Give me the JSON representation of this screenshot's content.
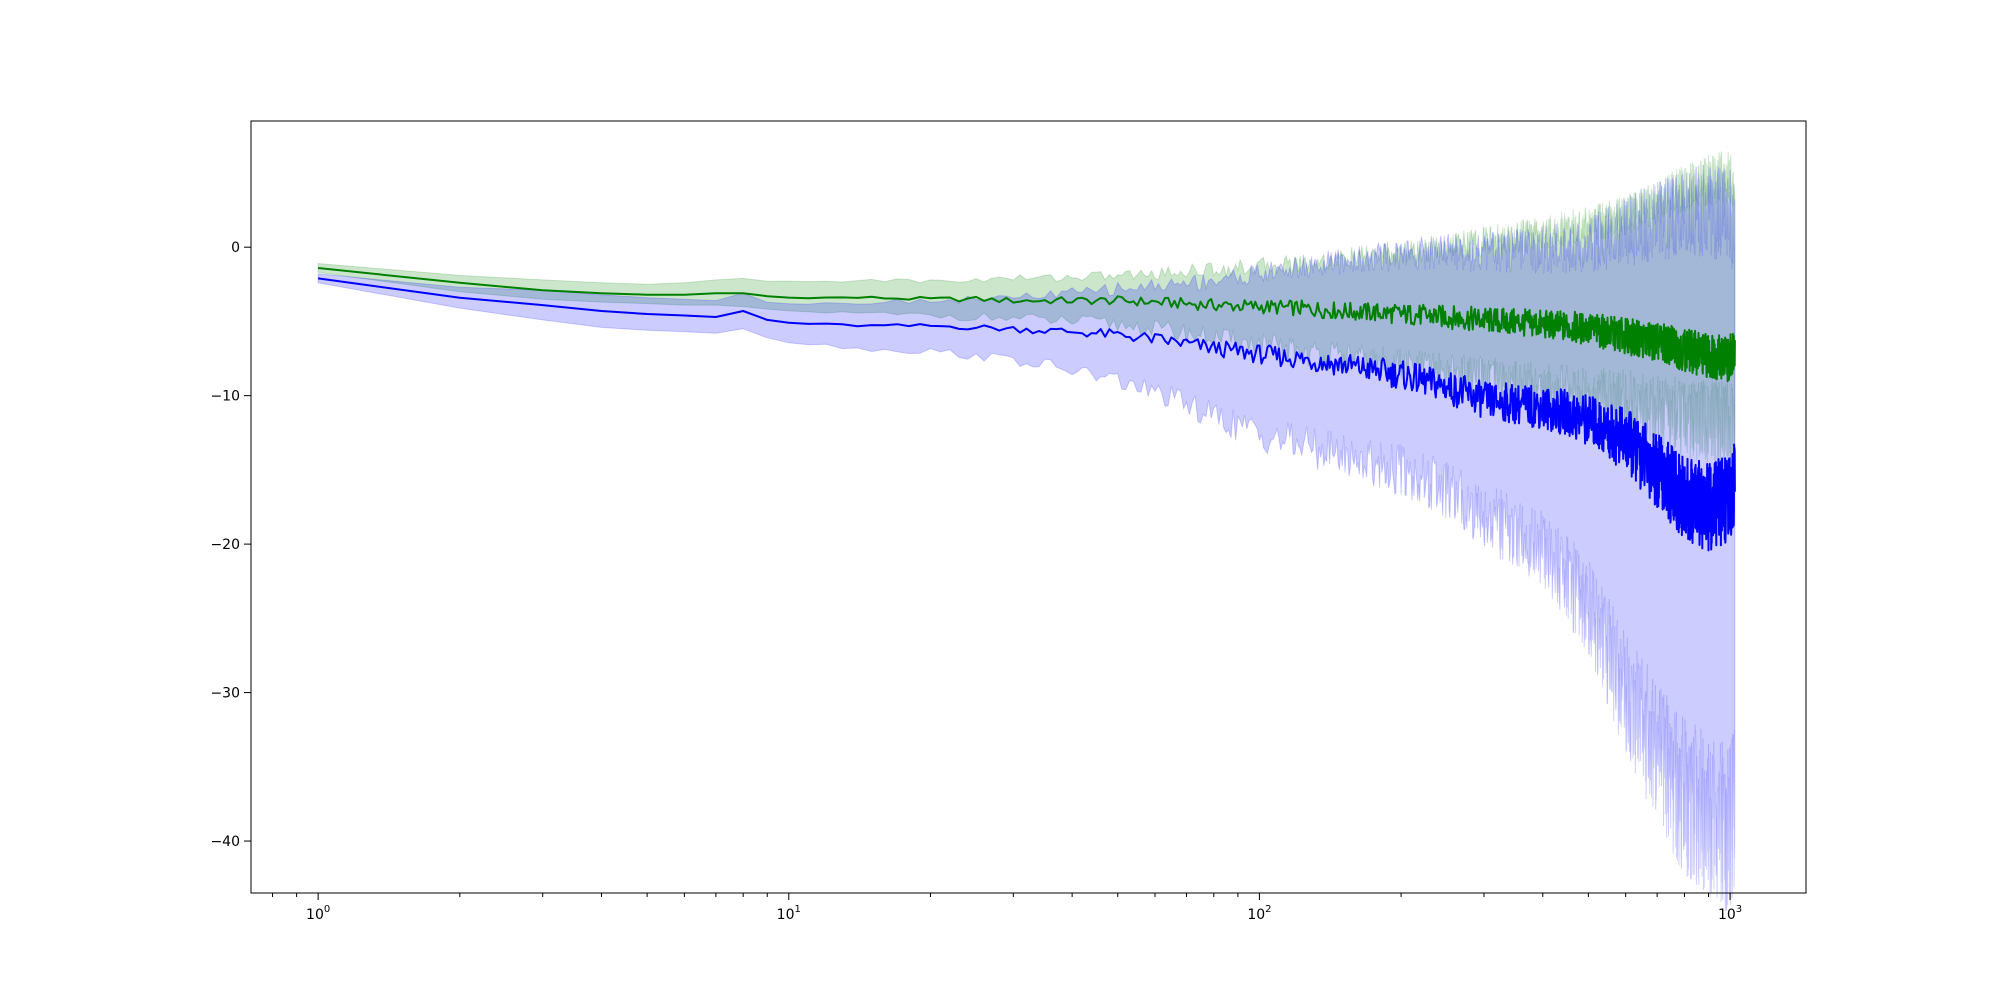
{
  "chart_data": {
    "type": "line",
    "title": "",
    "xlabel": "",
    "ylabel": "",
    "xscale": "log",
    "xlim": [
      0.72,
      1450
    ],
    "ylim": [
      -43.5,
      8.5
    ],
    "grid": false,
    "legend": "none",
    "x_ticks": [
      {
        "value": 1,
        "base": "10",
        "exp": "0"
      },
      {
        "value": 10,
        "base": "10",
        "exp": "1"
      },
      {
        "value": 100,
        "base": "10",
        "exp": "2"
      },
      {
        "value": 1000,
        "base": "10",
        "exp": "3"
      }
    ],
    "y_ticks": [
      {
        "value": 0,
        "label": "0"
      },
      {
        "value": -10,
        "label": "−10"
      },
      {
        "value": -20,
        "label": "−20"
      },
      {
        "value": -30,
        "label": "−30"
      },
      {
        "value": -40,
        "label": "−40"
      }
    ],
    "x": [
      1,
      1.5,
      2,
      3,
      4,
      5,
      6,
      7,
      8,
      9,
      10,
      12,
      15,
      20,
      25,
      30,
      40,
      50,
      60,
      70,
      80,
      100,
      120,
      150,
      200,
      250,
      300,
      400,
      500,
      600,
      700,
      800,
      900,
      1000,
      1024
    ],
    "series": [
      {
        "color": "#008000",
        "band_color": "#008000",
        "mean": [
          -1.4,
          -2.0,
          -2.4,
          -2.9,
          -3.1,
          -3.2,
          -3.2,
          -3.1,
          -3.1,
          -3.3,
          -3.4,
          -3.4,
          -3.4,
          -3.5,
          -3.5,
          -3.6,
          -3.6,
          -3.6,
          -3.7,
          -3.8,
          -3.9,
          -4.0,
          -4.1,
          -4.3,
          -4.5,
          -4.7,
          -4.9,
          -5.2,
          -5.5,
          -6.0,
          -6.4,
          -6.9,
          -7.3,
          -7.5,
          -6.5
        ],
        "lower": [
          -1.7,
          -2.4,
          -3.0,
          -3.5,
          -3.7,
          -3.8,
          -3.9,
          -3.9,
          -4.0,
          -4.2,
          -4.3,
          -4.4,
          -4.5,
          -4.6,
          -4.7,
          -4.8,
          -5.0,
          -5.2,
          -5.5,
          -5.8,
          -6.1,
          -6.6,
          -7.0,
          -7.5,
          -8.0,
          -8.5,
          -9.0,
          -9.5,
          -10.0,
          -10.5,
          -11.0,
          -11.5,
          -11.8,
          -12.0,
          -11.0
        ],
        "upper": [
          -1.1,
          -1.6,
          -1.9,
          -2.2,
          -2.4,
          -2.5,
          -2.4,
          -2.2,
          -2.1,
          -2.3,
          -2.3,
          -2.3,
          -2.2,
          -2.3,
          -2.2,
          -2.1,
          -2.0,
          -1.9,
          -1.8,
          -1.6,
          -1.5,
          -1.3,
          -1.1,
          -0.8,
          -0.4,
          0.0,
          0.4,
          1.0,
          1.5,
          2.2,
          3.0,
          4.0,
          4.5,
          4.8,
          3.5
        ]
      },
      {
        "color": "#0000ff",
        "band_color": "#0000ff",
        "mean": [
          -2.1,
          -2.9,
          -3.4,
          -3.9,
          -4.3,
          -4.5,
          -4.6,
          -4.7,
          -4.3,
          -4.9,
          -5.1,
          -5.2,
          -5.3,
          -5.3,
          -5.4,
          -5.5,
          -5.7,
          -5.9,
          -6.2,
          -6.5,
          -6.8,
          -7.2,
          -7.5,
          -7.9,
          -8.6,
          -9.4,
          -10.3,
          -10.8,
          -11.6,
          -13.0,
          -15.0,
          -17.0,
          -17.5,
          -17.0,
          -16.0
        ],
        "lower": [
          -2.4,
          -3.4,
          -4.1,
          -4.9,
          -5.4,
          -5.6,
          -5.7,
          -5.8,
          -5.5,
          -6.1,
          -6.4,
          -6.6,
          -6.9,
          -7.0,
          -7.3,
          -7.6,
          -8.3,
          -9.0,
          -9.8,
          -10.6,
          -11.4,
          -12.6,
          -13.2,
          -14.0,
          -15.0,
          -16.5,
          -18.0,
          -20.5,
          -24.0,
          -30.0,
          -34.0,
          -37.0,
          -38.5,
          -39.0,
          -38.0
        ],
        "upper": [
          -1.8,
          -2.4,
          -2.7,
          -2.9,
          -3.2,
          -3.4,
          -3.5,
          -3.6,
          -3.1,
          -3.7,
          -3.8,
          -3.8,
          -3.7,
          -3.6,
          -3.5,
          -3.4,
          -3.1,
          -2.8,
          -2.6,
          -2.4,
          -2.2,
          -1.8,
          -1.4,
          -1.0,
          -0.5,
          -0.2,
          -0.4,
          -0.2,
          0.2,
          1.0,
          1.8,
          2.3,
          2.5,
          2.0,
          1.0
        ]
      }
    ]
  }
}
